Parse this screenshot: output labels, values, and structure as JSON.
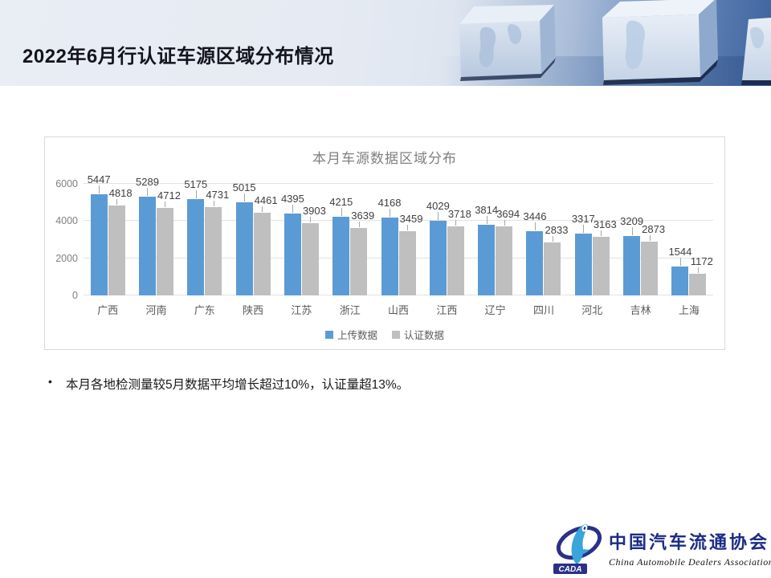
{
  "header": {
    "title": "2022年6月行认证车源区域分布情况"
  },
  "chart_data": {
    "type": "bar",
    "title": "本月车源数据区域分布",
    "categories": [
      "广西",
      "河南",
      "广东",
      "陕西",
      "江苏",
      "浙江",
      "山西",
      "江西",
      "辽宁",
      "四川",
      "河北",
      "吉林",
      "上海"
    ],
    "series": [
      {
        "name": "上传数据",
        "color": "#5b9bd5",
        "values": [
          5447,
          5289,
          5175,
          5015,
          4395,
          4215,
          4168,
          4029,
          3814,
          3446,
          3317,
          3209,
          1544
        ]
      },
      {
        "name": "认证数据",
        "color": "#bfbfbf",
        "values": [
          4818,
          4712,
          4731,
          4461,
          3903,
          3639,
          3459,
          3718,
          3694,
          2833,
          3163,
          2873,
          1172
        ]
      }
    ],
    "y_ticks": [
      0,
      2000,
      4000,
      6000
    ],
    "ylim": [
      0,
      6000
    ],
    "grid": true,
    "legend_position": "bottom"
  },
  "bullet": {
    "marker": "•",
    "text": "本月各地检测量较5月数据平均增长超过10%，认证量超13%。"
  },
  "logo": {
    "acronym": "CADA",
    "name_cn": "中国汽车流通协会",
    "name_en": "China Automobile Dealers Association"
  }
}
